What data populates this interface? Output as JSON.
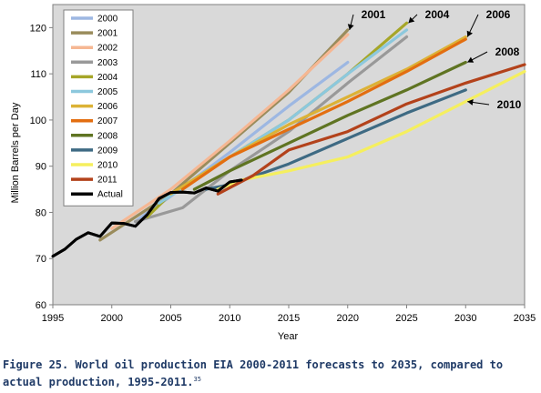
{
  "chart_data": {
    "type": "line",
    "xlabel": "Year",
    "ylabel": "Million Barrels per Day",
    "xlim": [
      1995,
      2035
    ],
    "ylim": [
      60,
      125
    ],
    "xticks": [
      1995,
      2000,
      2005,
      2010,
      2015,
      2020,
      2025,
      2030,
      2035
    ],
    "yticks": [
      60,
      70,
      80,
      90,
      100,
      110,
      120
    ],
    "grid": false,
    "legend_position": "top-left",
    "series": [
      {
        "name": "2000",
        "color": "#9db7e2",
        "points": [
          [
            2002,
            78.0
          ],
          [
            2005,
            83.5
          ],
          [
            2010,
            93.0
          ],
          [
            2015,
            103.0
          ],
          [
            2020,
            112.5
          ]
        ]
      },
      {
        "name": "2001",
        "color": "#9a8c5c",
        "points": [
          [
            1999,
            74.0
          ],
          [
            2005,
            84.0
          ],
          [
            2010,
            95.0
          ],
          [
            2015,
            106.0
          ],
          [
            2020,
            119.5
          ]
        ]
      },
      {
        "name": "2002",
        "color": "#f6b793",
        "points": [
          [
            2000,
            76.5
          ],
          [
            2005,
            85.0
          ],
          [
            2010,
            95.5
          ],
          [
            2015,
            106.5
          ],
          [
            2020,
            118.5
          ]
        ]
      },
      {
        "name": "2003",
        "color": "#999999",
        "points": [
          [
            2002,
            78.0
          ],
          [
            2006,
            81.0
          ],
          [
            2010,
            89.0
          ],
          [
            2015,
            97.5
          ],
          [
            2020,
            108.0
          ],
          [
            2025,
            118.0
          ]
        ]
      },
      {
        "name": "2004",
        "color": "#a6a628",
        "points": [
          [
            2003,
            79.0
          ],
          [
            2005,
            84.0
          ],
          [
            2010,
            92.0
          ],
          [
            2015,
            100.0
          ],
          [
            2020,
            110.0
          ],
          [
            2025,
            121.0
          ]
        ]
      },
      {
        "name": "2005",
        "color": "#8cc8dd",
        "points": [
          [
            2004,
            82.0
          ],
          [
            2010,
            92.0
          ],
          [
            2015,
            100.0
          ],
          [
            2020,
            110.0
          ],
          [
            2025,
            119.5
          ]
        ]
      },
      {
        "name": "2006",
        "color": "#dcb236",
        "points": [
          [
            2005,
            84.0
          ],
          [
            2010,
            92.0
          ],
          [
            2015,
            99.0
          ],
          [
            2020,
            105.0
          ],
          [
            2025,
            111.0
          ],
          [
            2030,
            118.0
          ]
        ]
      },
      {
        "name": "2007",
        "color": "#e36e10",
        "points": [
          [
            2006,
            85.0
          ],
          [
            2010,
            92.0
          ],
          [
            2015,
            98.0
          ],
          [
            2020,
            104.0
          ],
          [
            2025,
            110.5
          ],
          [
            2030,
            117.5
          ]
        ]
      },
      {
        "name": "2008",
        "color": "#5f7422",
        "points": [
          [
            2007,
            85.0
          ],
          [
            2010,
            89.0
          ],
          [
            2015,
            95.0
          ],
          [
            2020,
            101.0
          ],
          [
            2025,
            106.5
          ],
          [
            2030,
            112.5
          ]
        ]
      },
      {
        "name": "2009",
        "color": "#3e6a83",
        "points": [
          [
            2008,
            85.0
          ],
          [
            2010,
            86.0
          ],
          [
            2015,
            90.5
          ],
          [
            2020,
            96.0
          ],
          [
            2025,
            101.5
          ],
          [
            2030,
            106.5
          ]
        ]
      },
      {
        "name": "2010",
        "color": "#f5ef5e",
        "points": [
          [
            2009,
            85.0
          ],
          [
            2011,
            87.0
          ],
          [
            2015,
            89.0
          ],
          [
            2020,
            92.0
          ],
          [
            2025,
            97.5
          ],
          [
            2030,
            104.0
          ],
          [
            2035,
            110.5
          ]
        ]
      },
      {
        "name": "2011",
        "color": "#b3421b",
        "points": [
          [
            2009,
            84.0
          ],
          [
            2012,
            88.0
          ],
          [
            2015,
            93.5
          ],
          [
            2020,
            97.5
          ],
          [
            2025,
            103.5
          ],
          [
            2030,
            108.0
          ],
          [
            2035,
            112.0
          ]
        ]
      },
      {
        "name": "Actual",
        "color": "#000000",
        "points": [
          [
            1995,
            70.5
          ],
          [
            1996,
            72.0
          ],
          [
            1997,
            74.2
          ],
          [
            1998,
            75.6
          ],
          [
            1999,
            74.8
          ],
          [
            2000,
            77.7
          ],
          [
            2001,
            77.6
          ],
          [
            2002,
            77.0
          ],
          [
            2003,
            79.5
          ],
          [
            2004,
            83.0
          ],
          [
            2005,
            84.3
          ],
          [
            2006,
            84.4
          ],
          [
            2007,
            84.2
          ],
          [
            2008,
            85.3
          ],
          [
            2009,
            84.6
          ],
          [
            2010,
            86.6
          ],
          [
            2011,
            87.0
          ]
        ]
      }
    ],
    "annotations": [
      {
        "text": "2001",
        "target": [
          2020,
          119.5
        ]
      },
      {
        "text": "2004",
        "target": [
          2025,
          121.0
        ]
      },
      {
        "text": "2006",
        "target": [
          2030,
          118.0
        ]
      },
      {
        "text": "2008",
        "target": [
          2030,
          112.5
        ]
      },
      {
        "text": "2010",
        "target": [
          2030,
          104.0
        ]
      }
    ]
  },
  "caption": {
    "text": "Figure 25. World oil production EIA 2000-2011 forecasts to 2035, compared to actual production, 1995-2011.",
    "superscript": "35"
  }
}
